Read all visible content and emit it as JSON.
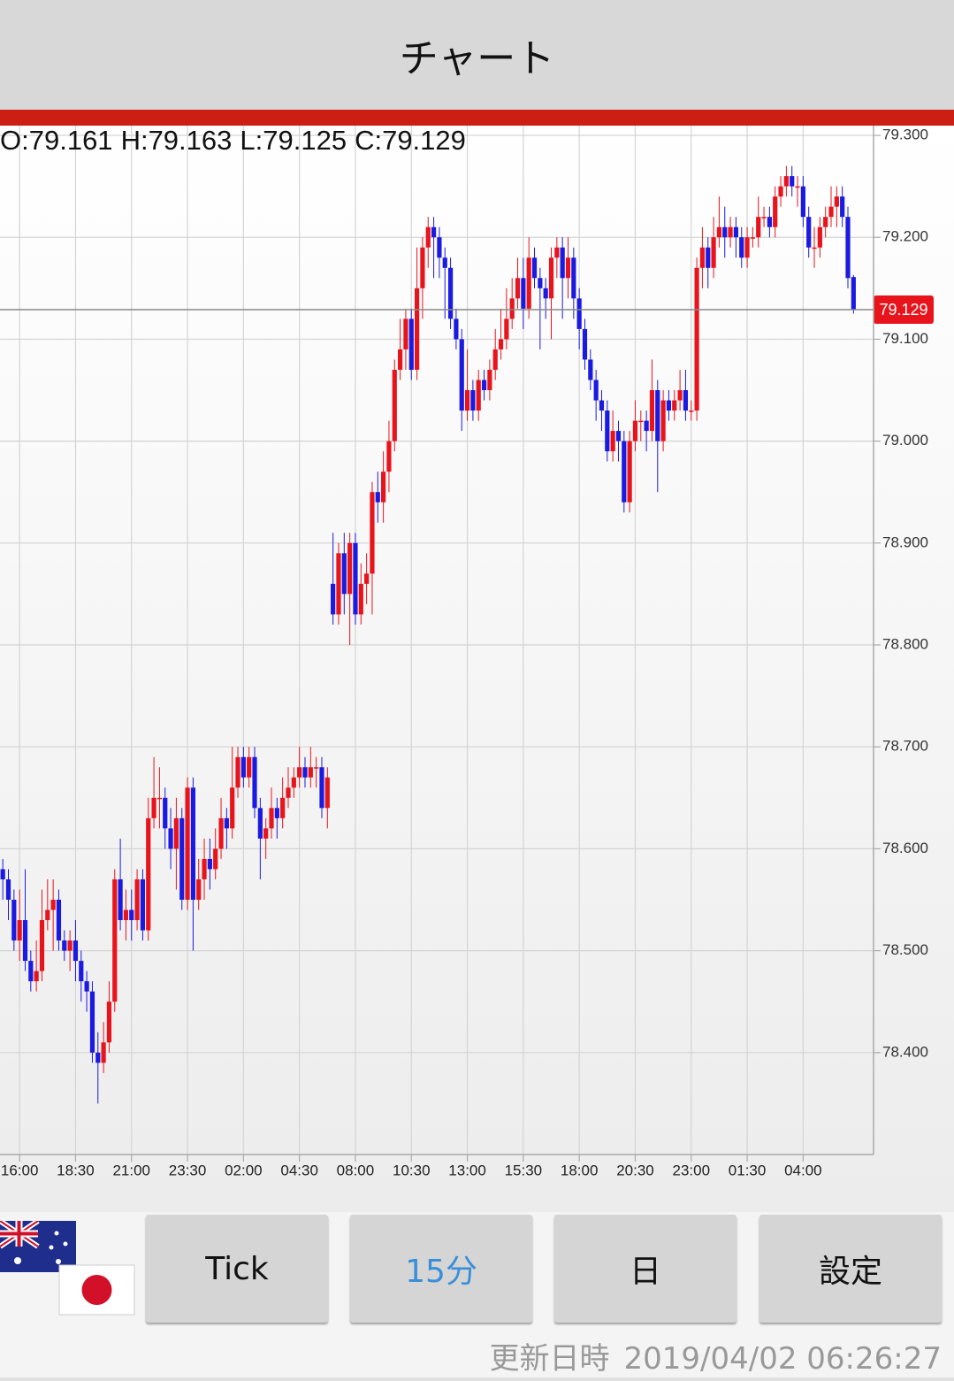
{
  "header": {
    "title": "チャート"
  },
  "chart_data": {
    "type": "candlestick",
    "ohlc_labels": [
      "O:",
      "H:",
      "L:",
      "C:"
    ],
    "up_color": "#e8141c",
    "down_color": "#1a1ae0",
    "last_price_line_color": "#888888",
    "last_price_tag_color": "#e8141c",
    "grid": true,
    "ylim": [
      78.3,
      79.31
    ],
    "yticks": [
      {
        "value": 78.4,
        "label": "78.400"
      },
      {
        "value": 78.5,
        "label": "78.500"
      },
      {
        "value": 78.6,
        "label": "78.600"
      },
      {
        "value": 78.7,
        "label": "78.700"
      },
      {
        "value": 78.8,
        "label": "78.800"
      },
      {
        "value": 78.9,
        "label": "78.900"
      },
      {
        "value": 79.0,
        "label": "79.000"
      },
      {
        "value": 79.1,
        "label": "79.100"
      },
      {
        "value": 79.2,
        "label": "79.200"
      },
      {
        "value": 79.3,
        "label": "79.300"
      }
    ],
    "categories": [
      null,
      null,
      null,
      "16:00",
      null,
      null,
      null,
      null,
      null,
      null,
      null,
      null,
      null,
      "18:30",
      null,
      null,
      null,
      null,
      null,
      null,
      null,
      null,
      null,
      "21:00",
      null,
      null,
      null,
      null,
      null,
      null,
      null,
      null,
      null,
      "23:30",
      null,
      null,
      null,
      null,
      null,
      null,
      null,
      null,
      null,
      "02:00",
      null,
      null,
      null,
      null,
      null,
      null,
      null,
      null,
      null,
      "04:30",
      null,
      null,
      null,
      null,
      null,
      null,
      null,
      null,
      null,
      "08:00",
      null,
      null,
      null,
      null,
      null,
      null,
      null,
      null,
      null,
      "10:30",
      null,
      null,
      null,
      null,
      null,
      null,
      null,
      null,
      null,
      "13:00",
      null,
      null,
      null,
      null,
      null,
      null,
      null,
      null,
      null,
      "15:30",
      null,
      null,
      null,
      null,
      null,
      null,
      null,
      null,
      null,
      "18:00",
      null,
      null,
      null,
      null,
      null,
      null,
      null,
      null,
      null,
      "20:30",
      null,
      null,
      null,
      null,
      null,
      null,
      null,
      null,
      null,
      "23:00",
      null,
      null,
      null,
      null,
      null,
      null,
      null,
      null,
      null,
      "01:30",
      null,
      null,
      null,
      null,
      null,
      null,
      null,
      null,
      null,
      "04:00",
      null,
      null,
      null,
      null,
      null,
      null,
      null,
      null,
      null
    ],
    "open": [
      78.58,
      78.57,
      78.55,
      78.51,
      78.53,
      78.49,
      78.47,
      78.48,
      78.53,
      78.54,
      78.55,
      78.51,
      78.5,
      78.51,
      78.49,
      78.47,
      78.46,
      78.4,
      78.39,
      78.41,
      78.45,
      78.57,
      78.53,
      78.54,
      78.53,
      78.57,
      78.52,
      78.63,
      78.65,
      78.65,
      78.62,
      78.6,
      78.63,
      78.55,
      78.66,
      78.55,
      78.57,
      78.59,
      78.58,
      78.6,
      78.63,
      78.62,
      78.66,
      78.69,
      78.67,
      78.69,
      78.64,
      78.61,
      78.62,
      78.64,
      78.63,
      78.65,
      78.66,
      78.67,
      78.68,
      78.67,
      78.68,
      78.68,
      78.64,
      78.86,
      78.83,
      78.89,
      78.85,
      78.9,
      78.83,
      78.86,
      78.87,
      78.95,
      78.94,
      78.97,
      79.0,
      79.07,
      79.09,
      79.12,
      79.07,
      79.15,
      79.19,
      79.21,
      79.2,
      79.18,
      79.17,
      79.12,
      79.1,
      79.03,
      79.05,
      79.03,
      79.06,
      79.05,
      79.07,
      79.09,
      79.1,
      79.12,
      79.14,
      79.16,
      79.13,
      79.18,
      79.16,
      79.15,
      79.14,
      79.18,
      79.19,
      79.16,
      79.18,
      79.14,
      79.11,
      79.08,
      79.06,
      79.04,
      79.03,
      78.99,
      79.01,
      79.0,
      78.94,
      79.0,
      79.02,
      79.02,
      79.01,
      79.05,
      79.0,
      79.04,
      79.03,
      79.04,
      79.05,
      79.03,
      79.03,
      79.17,
      79.19,
      79.17,
      79.2,
      79.21,
      79.2,
      79.21,
      79.2,
      79.18,
      79.2,
      79.2,
      79.22,
      79.22,
      79.21,
      79.24,
      79.25,
      79.26,
      79.25,
      79.25,
      79.22,
      79.19,
      79.19,
      79.21,
      79.22,
      79.23,
      79.24,
      79.22,
      79.161
    ],
    "high": [
      78.59,
      78.58,
      78.56,
      78.56,
      78.58,
      78.5,
      78.51,
      78.56,
      78.57,
      78.57,
      78.56,
      78.52,
      78.52,
      78.53,
      78.5,
      78.48,
      78.47,
      78.42,
      78.43,
      78.47,
      78.58,
      78.61,
      78.56,
      78.56,
      78.58,
      78.58,
      78.65,
      78.69,
      78.68,
      78.66,
      78.64,
      78.65,
      78.64,
      78.67,
      78.67,
      78.59,
      78.61,
      78.61,
      78.62,
      78.65,
      78.64,
      78.7,
      78.7,
      78.7,
      78.7,
      78.7,
      78.65,
      78.63,
      78.66,
      78.65,
      78.67,
      78.68,
      78.68,
      78.7,
      78.69,
      78.7,
      78.69,
      78.69,
      78.68,
      78.91,
      78.9,
      78.91,
      78.91,
      78.91,
      78.88,
      78.89,
      78.96,
      78.97,
      78.99,
      79.02,
      79.08,
      79.12,
      79.13,
      79.13,
      79.19,
      79.2,
      79.22,
      79.22,
      79.21,
      79.19,
      79.18,
      79.13,
      79.11,
      79.09,
      79.06,
      79.07,
      79.07,
      79.08,
      79.11,
      79.13,
      79.15,
      79.16,
      79.18,
      79.18,
      79.2,
      79.19,
      79.17,
      79.16,
      79.19,
      79.2,
      79.2,
      79.2,
      79.19,
      79.15,
      79.12,
      79.09,
      79.07,
      79.05,
      79.04,
      79.03,
      79.02,
      79.01,
      79.01,
      79.04,
      79.03,
      79.03,
      79.08,
      79.06,
      79.05,
      79.05,
      79.05,
      79.07,
      79.07,
      79.04,
      79.18,
      79.21,
      79.2,
      79.22,
      79.24,
      79.23,
      79.22,
      79.22,
      79.21,
      79.21,
      79.21,
      79.24,
      79.23,
      79.23,
      79.25,
      79.26,
      79.27,
      79.27,
      79.26,
      79.26,
      79.23,
      79.21,
      79.22,
      79.23,
      79.25,
      79.25,
      79.25,
      79.23,
      79.163
    ],
    "low": [
      78.55,
      78.53,
      78.5,
      78.49,
      78.48,
      78.46,
      78.46,
      78.47,
      78.52,
      78.5,
      78.5,
      78.49,
      78.48,
      78.47,
      78.45,
      78.44,
      78.39,
      78.35,
      78.38,
      78.4,
      78.44,
      78.52,
      78.51,
      78.51,
      78.52,
      78.51,
      78.51,
      78.62,
      78.62,
      78.6,
      78.58,
      78.56,
      78.54,
      78.54,
      78.5,
      78.54,
      78.55,
      78.56,
      78.57,
      78.59,
      78.6,
      78.61,
      78.65,
      78.66,
      78.66,
      78.63,
      78.57,
      78.59,
      78.61,
      78.61,
      78.62,
      78.64,
      78.65,
      78.66,
      78.66,
      78.66,
      78.66,
      78.63,
      78.62,
      78.82,
      78.82,
      78.83,
      78.8,
      78.82,
      78.82,
      78.84,
      78.83,
      78.92,
      78.92,
      78.95,
      78.99,
      79.06,
      79.07,
      79.06,
      79.06,
      79.12,
      79.17,
      79.16,
      79.16,
      79.12,
      79.11,
      79.09,
      79.01,
      79.02,
      79.02,
      79.02,
      79.04,
      79.04,
      79.06,
      79.08,
      79.09,
      79.11,
      79.13,
      79.11,
      79.12,
      79.15,
      79.09,
      79.12,
      79.1,
      79.16,
      79.12,
      79.14,
      79.12,
      79.09,
      79.07,
      79.05,
      79.02,
      79.01,
      78.98,
      78.98,
      78.98,
      78.93,
      78.93,
      78.99,
      79.0,
      78.99,
      79.0,
      78.95,
      78.99,
      79.02,
      79.02,
      79.03,
      79.02,
      79.02,
      79.02,
      79.15,
      79.15,
      79.16,
      79.19,
      79.18,
      79.19,
      79.18,
      79.17,
      79.17,
      79.19,
      79.19,
      79.21,
      79.2,
      79.2,
      79.23,
      79.24,
      79.24,
      79.23,
      79.21,
      79.18,
      79.17,
      79.18,
      79.2,
      79.21,
      79.21,
      79.21,
      79.15,
      79.125
    ],
    "close": [
      78.57,
      78.55,
      78.51,
      78.53,
      78.49,
      78.47,
      78.48,
      78.53,
      78.54,
      78.55,
      78.51,
      78.5,
      78.51,
      78.49,
      78.47,
      78.46,
      78.4,
      78.39,
      78.41,
      78.45,
      78.57,
      78.53,
      78.54,
      78.53,
      78.57,
      78.52,
      78.63,
      78.65,
      78.65,
      78.62,
      78.6,
      78.63,
      78.55,
      78.66,
      78.55,
      78.57,
      78.59,
      78.58,
      78.6,
      78.63,
      78.62,
      78.66,
      78.69,
      78.67,
      78.69,
      78.64,
      78.61,
      78.62,
      78.64,
      78.63,
      78.65,
      78.66,
      78.67,
      78.68,
      78.67,
      78.68,
      78.68,
      78.64,
      78.67,
      78.83,
      78.89,
      78.85,
      78.9,
      78.83,
      78.86,
      78.87,
      78.95,
      78.94,
      78.97,
      79.0,
      79.07,
      79.09,
      79.12,
      79.07,
      79.15,
      79.19,
      79.21,
      79.2,
      79.18,
      79.17,
      79.12,
      79.1,
      79.03,
      79.05,
      79.03,
      79.06,
      79.05,
      79.07,
      79.09,
      79.1,
      79.12,
      79.14,
      79.16,
      79.13,
      79.18,
      79.16,
      79.15,
      79.14,
      79.18,
      79.19,
      79.16,
      79.18,
      79.14,
      79.11,
      79.08,
      79.06,
      79.04,
      79.03,
      78.99,
      79.01,
      79.0,
      78.94,
      79.0,
      79.02,
      79.02,
      79.01,
      79.05,
      79.0,
      79.04,
      79.03,
      79.04,
      79.05,
      79.03,
      79.03,
      79.17,
      79.19,
      79.17,
      79.2,
      79.21,
      79.2,
      79.21,
      79.2,
      79.18,
      79.2,
      79.2,
      79.22,
      79.22,
      79.21,
      79.24,
      79.25,
      79.26,
      79.25,
      79.25,
      79.22,
      79.19,
      79.19,
      79.21,
      79.22,
      79.23,
      79.24,
      79.22,
      79.16,
      79.129
    ]
  },
  "buttons": [
    "Tick",
    "15分",
    "日",
    "設定"
  ],
  "selected_button": 1,
  "footer": {
    "label": "更新日時",
    "timestamp": "2019/04/02 06:26:27"
  }
}
